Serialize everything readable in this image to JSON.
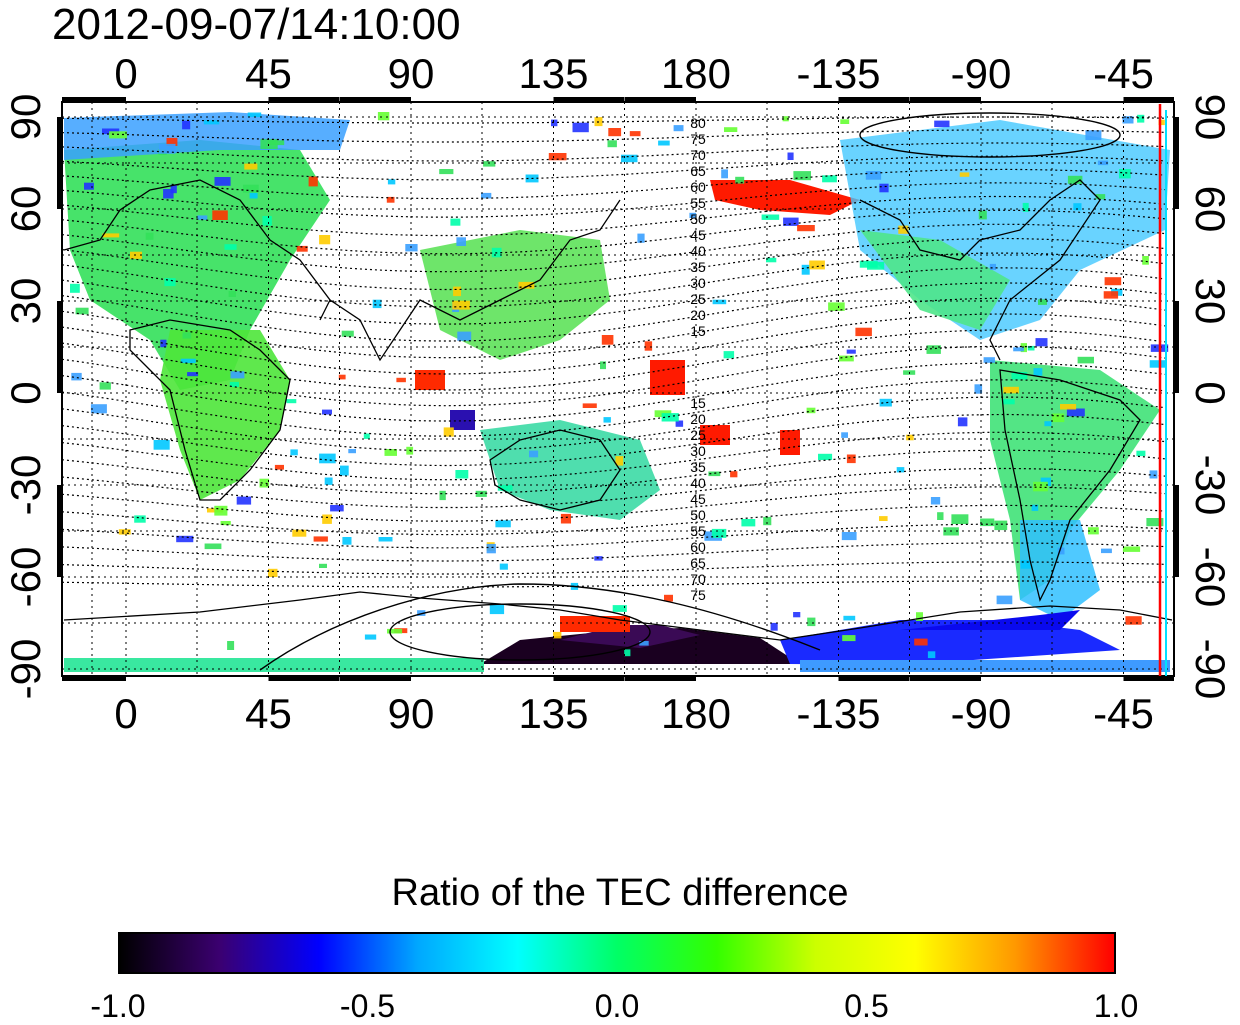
{
  "title": "2012-09-07/14:10:00",
  "map": {
    "lon_ticks": [
      "0",
      "45",
      "90",
      "135",
      "180",
      "-135",
      "-90",
      "-45"
    ],
    "lat_ticks": [
      "90",
      "60",
      "30",
      "0",
      "-30",
      "-60",
      "-90"
    ],
    "contour_labels_north": [
      "80",
      "75",
      "70",
      "65",
      "60",
      "55",
      "50",
      "45",
      "40",
      "35",
      "30",
      "25",
      "20",
      "15"
    ],
    "contour_labels_south": [
      "15",
      "20",
      "25",
      "30",
      "35",
      "40",
      "45",
      "50",
      "55",
      "60",
      "65",
      "70",
      "75"
    ],
    "marker_color": "#ff0000"
  },
  "colorbar": {
    "title": "Ratio of the TEC difference",
    "ticks": [
      "-1.0",
      "-0.5",
      "0.0",
      "0.5",
      "1.0"
    ],
    "colors": [
      "#000000",
      "#3b0070",
      "#0000ff",
      "#00a8ff",
      "#00ffff",
      "#00ff66",
      "#33ff00",
      "#ccff00",
      "#ffff00",
      "#ff9900",
      "#ff0000"
    ]
  }
}
